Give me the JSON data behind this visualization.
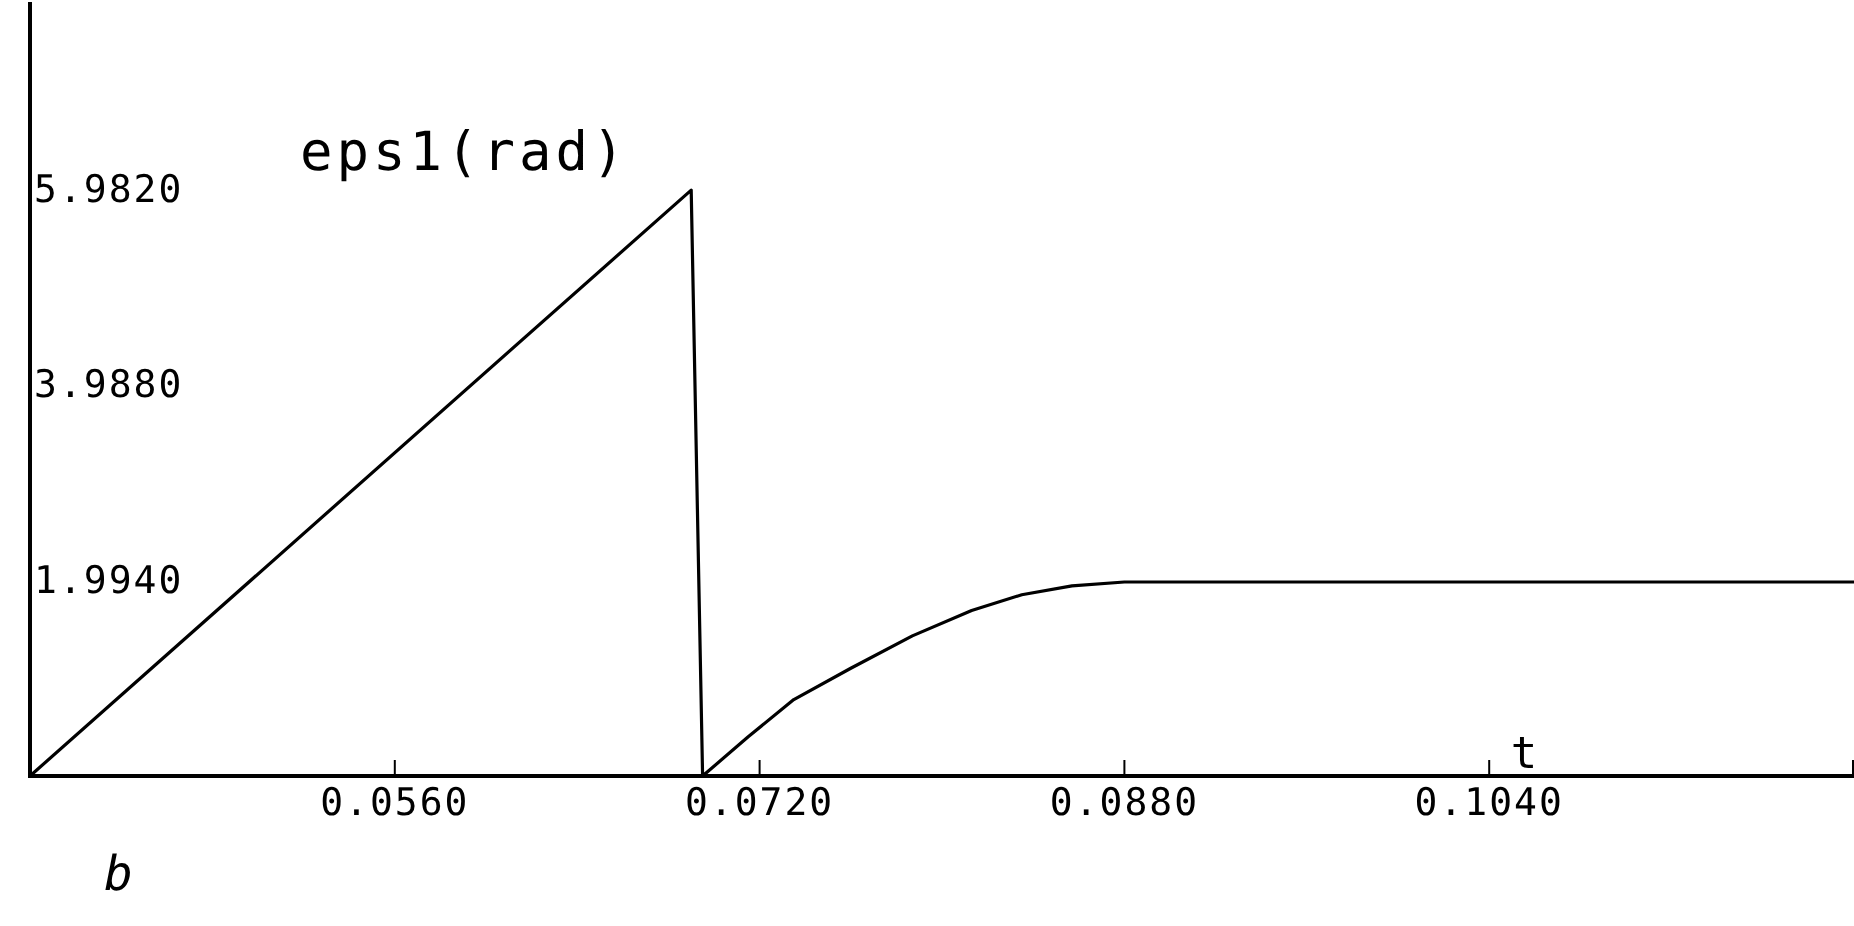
{
  "chart_data": {
    "type": "line",
    "ylabel": "eps1(rad)",
    "xlabel": "t",
    "annotations": [
      "b"
    ],
    "x": [
      0.04,
      0.069,
      0.0695,
      0.0715,
      0.0735,
      0.076,
      0.0787,
      0.0813,
      0.0835,
      0.0857,
      0.088,
      0.12
    ],
    "series": [
      {
        "color": "#000000",
        "values": [
          0,
          5.98,
          0,
          0.4,
          0.78,
          1.1,
          1.43,
          1.69,
          1.85,
          1.94,
          1.98,
          1.98
        ]
      }
    ],
    "xlim": [
      0.04,
      0.12
    ],
    "ylim": [
      0,
      7.9
    ],
    "xticks": [
      {
        "value": 0.056,
        "label": "0.0560"
      },
      {
        "value": 0.072,
        "label": "0.0720"
      },
      {
        "value": 0.088,
        "label": "0.0880"
      },
      {
        "value": 0.104,
        "label": "0.1040"
      }
    ],
    "yticks": [
      {
        "value": 1.994,
        "label": "1.9940"
      },
      {
        "value": 3.988,
        "label": "3.9880"
      },
      {
        "value": 5.982,
        "label": "5.9820"
      }
    ],
    "marker": "none",
    "line_style": "solid"
  }
}
